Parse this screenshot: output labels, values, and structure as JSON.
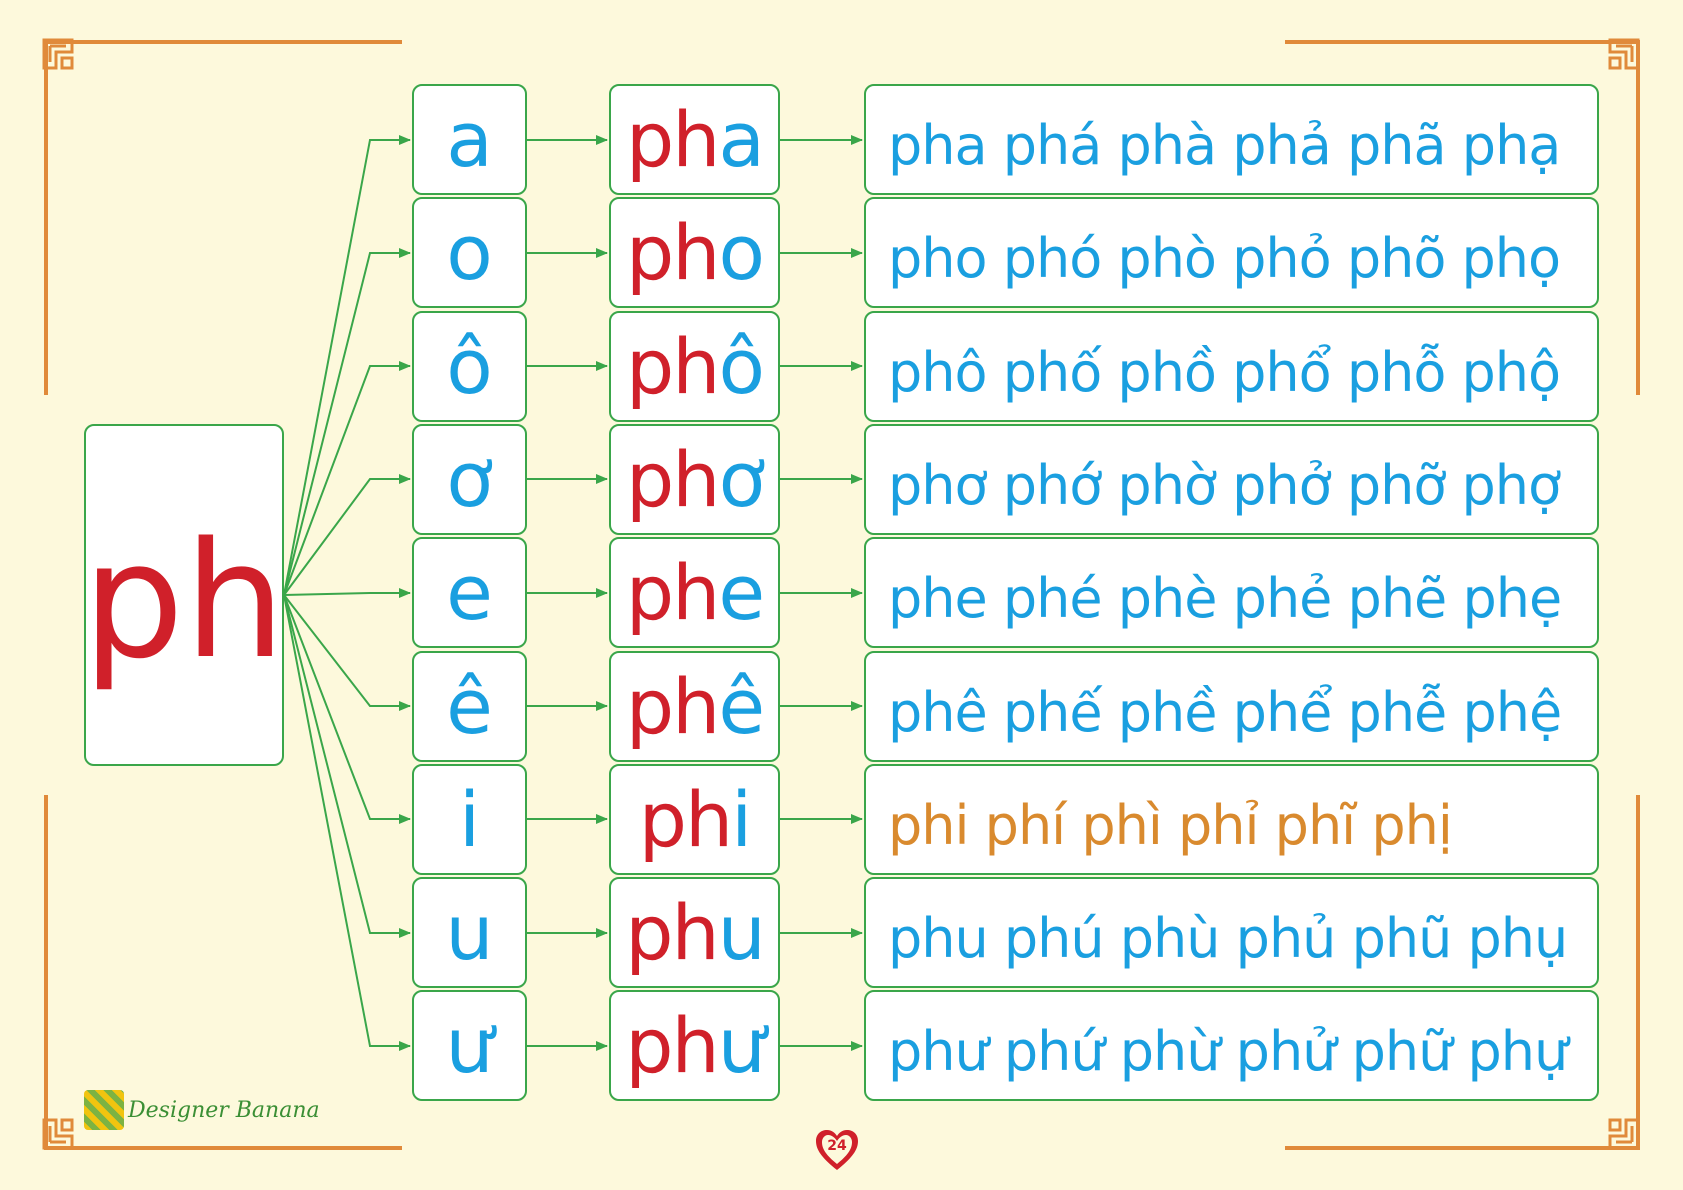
{
  "consonant": "ph",
  "rows": [
    {
      "vowel": "a",
      "syll_c": "ph",
      "syll_v": "a",
      "tones": "pha phá phà phả phã phạ",
      "accent": false
    },
    {
      "vowel": "o",
      "syll_c": "ph",
      "syll_v": "o",
      "tones": "pho phó phò phỏ phõ phọ",
      "accent": false
    },
    {
      "vowel": "ô",
      "syll_c": "ph",
      "syll_v": "ô",
      "tones": "phô phố phồ phổ phỗ phộ",
      "accent": false
    },
    {
      "vowel": "ơ",
      "syll_c": "ph",
      "syll_v": "ơ",
      "tones": "phơ phớ phờ phở phỡ phợ",
      "accent": false
    },
    {
      "vowel": "e",
      "syll_c": "ph",
      "syll_v": "e",
      "tones": "phe phé phè phẻ phẽ phẹ",
      "accent": false
    },
    {
      "vowel": "ê",
      "syll_c": "ph",
      "syll_v": "ê",
      "tones": "phê phế phề phể phễ phệ",
      "accent": false
    },
    {
      "vowel": "i",
      "syll_c": "ph",
      "syll_v": "i",
      "tones": "phi  phí  phì  phỉ  phĩ  phị",
      "accent": true
    },
    {
      "vowel": "u",
      "syll_c": "ph",
      "syll_v": "u",
      "tones": "phu phú phù phủ phũ phụ",
      "accent": false
    },
    {
      "vowel": "ư",
      "syll_c": "ph",
      "syll_v": "ư",
      "tones": "phư phứ phừ phử phữ phự",
      "accent": false
    }
  ],
  "footer": {
    "brand": "Designer Banana",
    "page": "24"
  },
  "colors": {
    "consonant": "#d0202a",
    "vowel": "#1a9fe0",
    "accent": "#d98a2e",
    "border": "#3aa64a",
    "frame": "#e08a3a",
    "background": "#fdf9dc"
  }
}
